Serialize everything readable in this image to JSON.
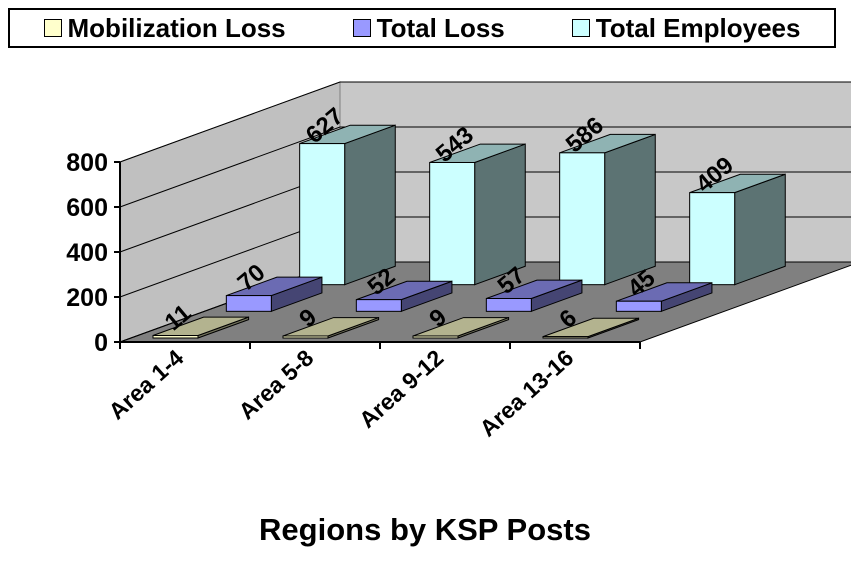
{
  "chart_data": {
    "type": "bar3d",
    "x_label": "Regions by KSP Posts",
    "categories": [
      "Area 1-4",
      "Area 5-8",
      "Area 9-12",
      "Area 13-16"
    ],
    "series": [
      {
        "name": "Mobilization Loss",
        "color": "#ffffcc",
        "values": [
          11,
          9,
          9,
          6
        ]
      },
      {
        "name": "Total Loss",
        "color": "#9999ff",
        "values": [
          70,
          52,
          57,
          45
        ]
      },
      {
        "name": "Total Employees",
        "color": "#ccffff",
        "values": [
          627,
          543,
          586,
          409
        ]
      }
    ],
    "ylim": [
      0,
      800
    ],
    "yticks": [
      0,
      200,
      400,
      600,
      800
    ],
    "grid": true,
    "legend": "top"
  }
}
